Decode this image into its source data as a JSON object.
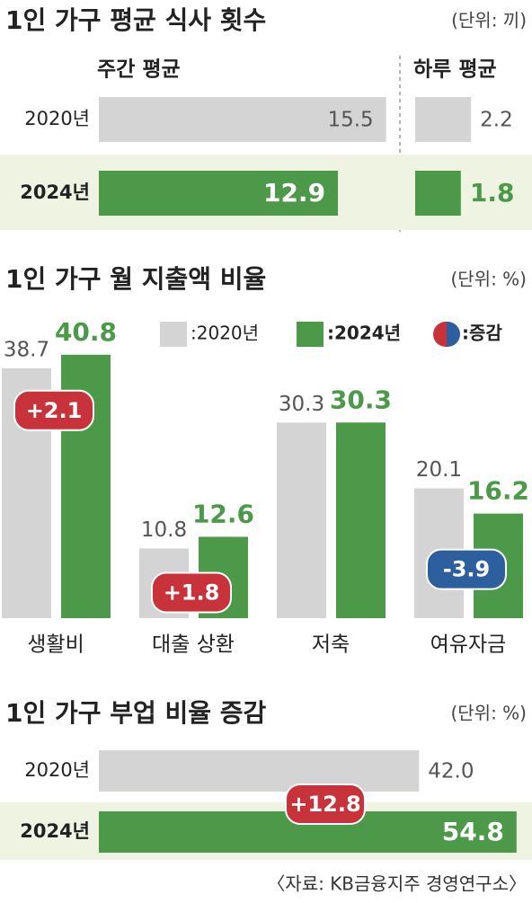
{
  "chart_data": [
    {
      "type": "bar",
      "orientation": "horizontal",
      "title": "1인 가구 평균 식사 횟수",
      "unit": "(단위: 끼)",
      "categories": [
        "2020년",
        "2024년"
      ],
      "colors": [
        "#d4d4d4",
        "#4c9a49"
      ],
      "series": [
        {
          "name": "주간 평균",
          "values": [
            15.5,
            12.9
          ],
          "xlim": [
            0,
            16
          ]
        },
        {
          "name": "하루 평균",
          "values": [
            2.2,
            1.8
          ],
          "xlim": [
            0,
            4
          ]
        }
      ]
    },
    {
      "type": "bar",
      "orientation": "vertical",
      "title": "1인 가구 월 지출액 비율",
      "unit": "(단위: %)",
      "categories": [
        "생활비",
        "대출 상환",
        "저축",
        "여유자금"
      ],
      "ylim": [
        0,
        43
      ],
      "series": [
        {
          "name": ":2020년",
          "color": "#d4d4d4",
          "values": [
            38.7,
            10.8,
            30.3,
            20.1
          ]
        },
        {
          "name": ":2024년",
          "color": "#4c9a49",
          "values": [
            40.8,
            12.6,
            30.3,
            16.2
          ]
        }
      ],
      "change": {
        "name": ":증감",
        "values": [
          2.1,
          1.8,
          null,
          -3.9
        ],
        "value_labels": [
          "+2.1",
          "+1.8",
          null,
          "-3.9"
        ],
        "colors": [
          "#c8333b",
          "#2d5f9e"
        ]
      }
    },
    {
      "type": "bar",
      "orientation": "horizontal",
      "title": "1인 가구 부업 비율 증감",
      "unit": "(단위: %)",
      "categories": [
        "2020년",
        "2024년"
      ],
      "colors": [
        "#d4d4d4",
        "#4c9a49"
      ],
      "series": [
        {
          "values": [
            42.0,
            54.8
          ],
          "value_labels": [
            "42.0",
            "54.8"
          ],
          "xlim": [
            0,
            56
          ]
        }
      ],
      "change": {
        "values": [
          12.8
        ],
        "value_labels": [
          "+12.8"
        ],
        "colors": [
          "#c8333b",
          "#2d5f9e"
        ]
      }
    }
  ],
  "source": "〈자료: KB금융지주 경영연구소〉"
}
